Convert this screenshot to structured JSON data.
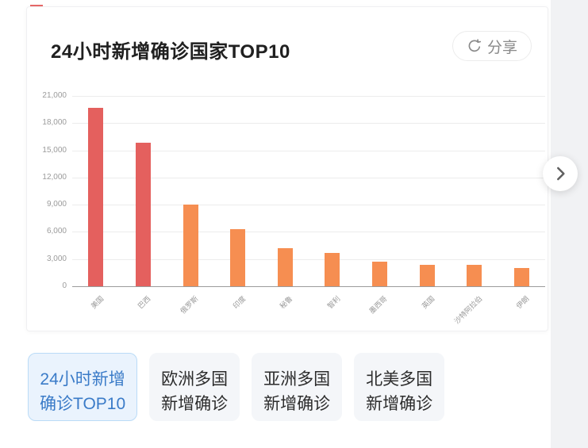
{
  "header": {
    "title": "24小时新增确诊国家TOP10",
    "share_label": "分享"
  },
  "chart_data": {
    "type": "bar",
    "title": "24小时新增确诊国家TOP10",
    "categories": [
      "美国",
      "巴西",
      "俄罗斯",
      "印度",
      "秘鲁",
      "智利",
      "墨西哥",
      "英国",
      "沙特阿拉伯",
      "伊朗"
    ],
    "values": [
      19700,
      15800,
      9000,
      6300,
      4200,
      3700,
      2700,
      2400,
      2400,
      2000
    ],
    "bar_colors": [
      "#e4605e",
      "#e4605e",
      "#f68e51",
      "#f68e51",
      "#f68e51",
      "#f68e51",
      "#f68e51",
      "#f68e51",
      "#f68e51",
      "#f68e51"
    ],
    "xlabel": "",
    "ylabel": "",
    "ylim": [
      0,
      21000
    ],
    "ytick_interval": 3000,
    "ytick_labels": [
      "0",
      "3,000",
      "6,000",
      "9,000",
      "12,000",
      "15,000",
      "18,000",
      "21,000"
    ],
    "grid": true,
    "legend": false
  },
  "tabs": [
    {
      "id": "tab-24h-new-top10",
      "line1": "24小时新增",
      "line2": "确诊TOP10",
      "active": true
    },
    {
      "id": "tab-europe-new-confirmed",
      "line1": "欧洲多国",
      "line2": "新增确诊",
      "active": false
    },
    {
      "id": "tab-asia-new-confirmed",
      "line1": "亚洲多国",
      "line2": "新增确诊",
      "active": false
    },
    {
      "id": "tab-north-america-new-confirmed",
      "line1": "北美多国",
      "line2": "新增确诊",
      "active": false
    }
  ],
  "colors": {
    "bar_red": "#e4605e",
    "bar_orange": "#f68e51",
    "grid": "#ececec",
    "axis": "#9b9b9b",
    "active_tab_text": "#3a7bc8",
    "active_tab_bg": "#eaf3fd",
    "active_tab_border": "#badbf7",
    "inactive_tab_bg": "#f4f6f9"
  }
}
